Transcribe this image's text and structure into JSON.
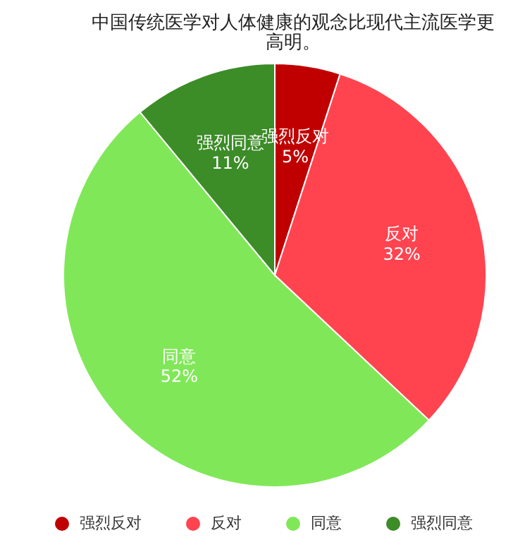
{
  "chart_data": {
    "type": "pie",
    "title": "中国传统医学对人体健康的观念比现代主流医学更高明。",
    "categories": [
      "强烈反对",
      "反对",
      "同意",
      "强烈同意"
    ],
    "values": [
      5,
      32,
      52,
      11
    ],
    "colors": [
      "#c00000",
      "#ff4450",
      "#80e858",
      "#3c8c28"
    ],
    "value_labels": [
      "5%",
      "32%",
      "52%",
      "11%"
    ],
    "legend": "bottom"
  }
}
